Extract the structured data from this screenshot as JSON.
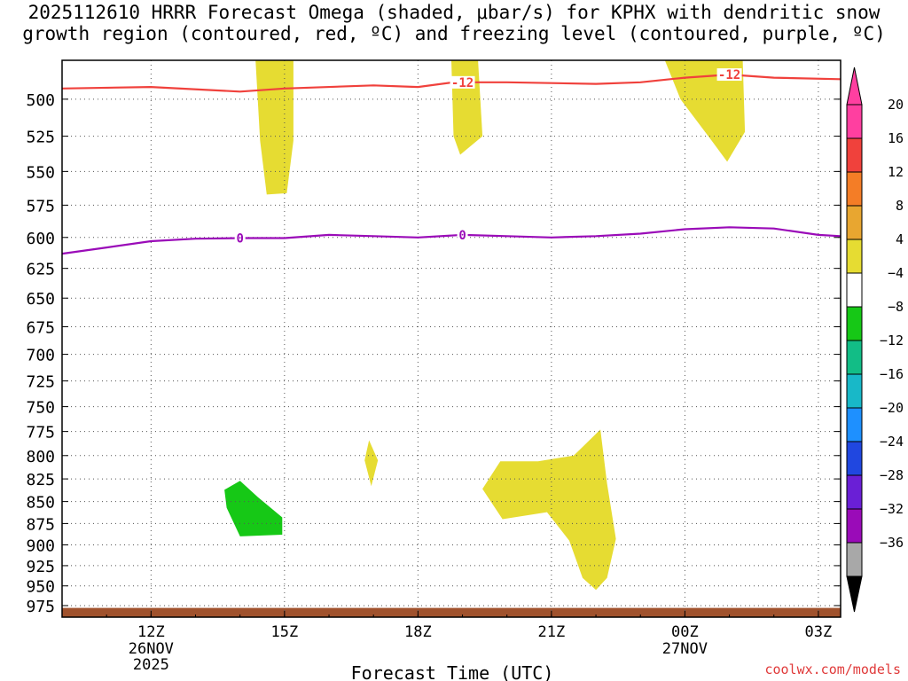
{
  "title_line1": "2025112610 HRRR Forecast Omega (shaded, μbar/s) for KPHX with dendritic snow",
  "title_line2": "growth region (contoured, red, ºC) and freezing level (contoured, purple, ºC)",
  "credit": "coolwx.com/models",
  "chart_data": {
    "type": "heatmap",
    "xlabel": "Forecast Time (UTC)",
    "x_range_hours": [
      10,
      27.5
    ],
    "y_range_mb": [
      475,
      990
    ],
    "y_scale": "log",
    "grid": true,
    "y_ticks": [
      500,
      525,
      550,
      575,
      600,
      625,
      650,
      675,
      700,
      725,
      750,
      775,
      800,
      825,
      850,
      875,
      900,
      925,
      950,
      975
    ],
    "x_ticks": [
      {
        "hour": 12,
        "label": "12Z",
        "date": "26NOV",
        "year": "2025"
      },
      {
        "hour": 15,
        "label": "15Z",
        "date": "",
        "year": ""
      },
      {
        "hour": 18,
        "label": "18Z",
        "date": "",
        "year": ""
      },
      {
        "hour": 21,
        "label": "21Z",
        "date": "",
        "year": ""
      },
      {
        "hour": 24,
        "label": "00Z",
        "date": "27NOV",
        "year": ""
      },
      {
        "hour": 27,
        "label": "03Z",
        "date": "",
        "year": ""
      }
    ],
    "colorbar": {
      "labels": [
        "20",
        "16",
        "12",
        "8",
        "4",
        "−4",
        "−8",
        "−12",
        "−16",
        "−20",
        "−24",
        "−28",
        "−32",
        "−36"
      ],
      "colors": [
        "#ff3fa0",
        "#f0413c",
        "#f47d26",
        "#e8a630",
        "#e6dc32",
        "#ffffff",
        "#16c816",
        "#12bd86",
        "#18b8c8",
        "#1e90ff",
        "#2047e0",
        "#6a1fd6",
        "#9a0bb8",
        "#a8a8a8"
      ]
    },
    "shaded_regions": [
      {
        "name": "omega 4-8 upper a",
        "color": "#e6dc32",
        "points": [
          [
            14.35,
            475
          ],
          [
            15.2,
            475
          ],
          [
            15.2,
            528
          ],
          [
            15.05,
            566
          ],
          [
            14.6,
            567
          ],
          [
            14.45,
            528
          ]
        ]
      },
      {
        "name": "omega 4-8 upper b",
        "color": "#e6dc32",
        "points": [
          [
            18.75,
            475
          ],
          [
            19.35,
            475
          ],
          [
            19.45,
            525
          ],
          [
            18.95,
            538
          ],
          [
            18.8,
            525
          ]
        ]
      },
      {
        "name": "omega 4-8 upper c",
        "color": "#e6dc32",
        "points": [
          [
            23.55,
            475
          ],
          [
            25.3,
            475
          ],
          [
            25.35,
            522
          ],
          [
            24.95,
            543
          ],
          [
            24.6,
            528
          ],
          [
            23.9,
            500
          ]
        ]
      },
      {
        "name": "omega 4-8 sliver",
        "color": "#e6dc32",
        "points": [
          [
            16.9,
            784
          ],
          [
            17.1,
            805
          ],
          [
            16.95,
            833
          ],
          [
            16.8,
            805
          ]
        ]
      },
      {
        "name": "omega 4-8 lower",
        "color": "#e6dc32",
        "points": [
          [
            19.45,
            836
          ],
          [
            19.85,
            806
          ],
          [
            20.7,
            806
          ],
          [
            21.5,
            800
          ],
          [
            22.1,
            773
          ],
          [
            22.25,
            830
          ],
          [
            22.45,
            893
          ],
          [
            22.25,
            940
          ],
          [
            22.0,
            955
          ],
          [
            21.7,
            940
          ],
          [
            21.4,
            895
          ],
          [
            20.9,
            862
          ],
          [
            19.9,
            870
          ]
        ]
      },
      {
        "name": "omega -4 to -8",
        "color": "#16c816",
        "points": [
          [
            13.65,
            837
          ],
          [
            14.0,
            827
          ],
          [
            14.4,
            845
          ],
          [
            14.95,
            868
          ],
          [
            14.95,
            888
          ],
          [
            14.0,
            890
          ],
          [
            13.7,
            857
          ]
        ]
      }
    ],
    "surface": {
      "name": "ground",
      "color": "#a0522d",
      "pressure_top": 978
    },
    "dgz_line": {
      "name": "-12 C isotherm",
      "color": "#f0413c",
      "label": "-12",
      "label_hours": [
        19.0,
        25.0
      ],
      "points": [
        [
          10,
          493
        ],
        [
          12,
          492
        ],
        [
          14,
          495
        ],
        [
          15,
          493
        ],
        [
          17,
          491
        ],
        [
          18,
          492
        ],
        [
          18.8,
          489
        ],
        [
          20,
          489
        ],
        [
          22,
          490
        ],
        [
          23,
          489
        ],
        [
          24,
          486
        ],
        [
          25,
          484
        ],
        [
          26,
          486
        ],
        [
          27.5,
          487
        ]
      ]
    },
    "freezing_line": {
      "name": "0 C isotherm",
      "color": "#9a0bb8",
      "label": "0",
      "label_hours": [
        14.0,
        19.0
      ],
      "points": [
        [
          10,
          613
        ],
        [
          11,
          608
        ],
        [
          12,
          603
        ],
        [
          13,
          601
        ],
        [
          14,
          600.5
        ],
        [
          15,
          600.5
        ],
        [
          16,
          598
        ],
        [
          17,
          599
        ],
        [
          18,
          600
        ],
        [
          19,
          598
        ],
        [
          20,
          599
        ],
        [
          21,
          600
        ],
        [
          22,
          599
        ],
        [
          23,
          597
        ],
        [
          24,
          593.5
        ],
        [
          25,
          592
        ],
        [
          26,
          593
        ],
        [
          27,
          598
        ],
        [
          27.5,
          599
        ]
      ]
    }
  }
}
